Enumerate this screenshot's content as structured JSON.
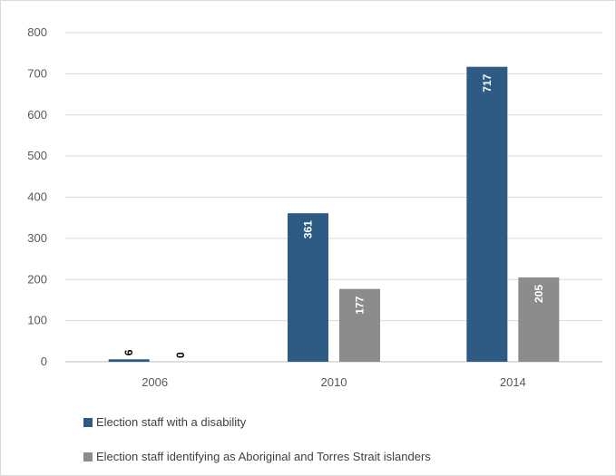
{
  "chart_data": {
    "type": "bar",
    "categories": [
      "2006",
      "2010",
      "2014"
    ],
    "series": [
      {
        "name": "Election staff with a disability",
        "values": [
          6,
          361,
          717
        ],
        "color": "#2e5b84",
        "label_color": "#ffffff"
      },
      {
        "name": "Election staff identifying as Aboriginal and Torres Strait islanders",
        "values": [
          0,
          177,
          205
        ],
        "color": "#8c8c8c",
        "label_color": "#ffffff"
      }
    ],
    "ylim": [
      0,
      800
    ],
    "yticks": [
      "0",
      "100",
      "200",
      "300",
      "400",
      "500",
      "600",
      "700",
      "800"
    ],
    "grid": true,
    "legend_position": "bottom-left"
  }
}
